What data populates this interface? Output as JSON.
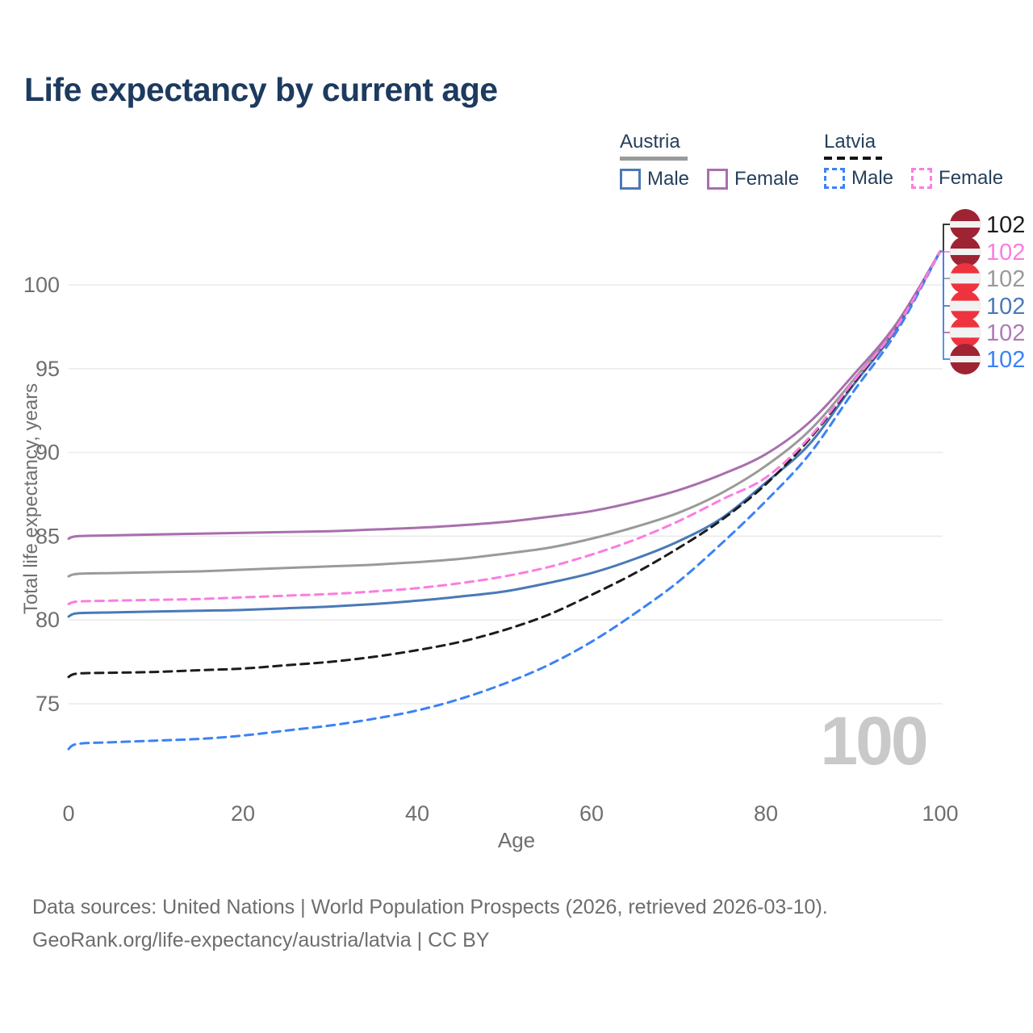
{
  "title": "Life expectancy by current age",
  "legend": {
    "austria": {
      "label": "Austria",
      "male": "Male",
      "female": "Female"
    },
    "latvia": {
      "label": "Latvia",
      "male": "Male",
      "female": "Female"
    }
  },
  "footer": {
    "line1": "Data sources: United Nations | World Population Prospects (2026, retrieved 2026-03-10).",
    "line2": "GeoRank.org/life-expectancy/austria/latvia | CC BY"
  },
  "colors": {
    "title_text": "#1d3a5f",
    "legend_text": "#26405c",
    "axis_text": "#6f6f6f",
    "grid": "#eaeaea",
    "watermark": "#c9c9c9",
    "footer_text": "#6d6d6d",
    "austria_flag_red": "#ee333f",
    "latvia_flag_red": "#9e2433",
    "flag_white": "#f2f2f2"
  },
  "chart_data": {
    "type": "line",
    "title": "Life expectancy by current age",
    "xlabel": "Age",
    "ylabel": "Total life expectancy, years",
    "xlim": [
      0,
      100
    ],
    "ylim": [
      71,
      103
    ],
    "xticks": [
      0,
      20,
      40,
      60,
      80,
      100
    ],
    "yticks": [
      75,
      80,
      85,
      90,
      95,
      100
    ],
    "grid": "horizontal",
    "legend_position": "top-right",
    "watermark": "100",
    "x": [
      0,
      1,
      5,
      10,
      15,
      20,
      25,
      30,
      35,
      40,
      45,
      50,
      55,
      60,
      65,
      70,
      75,
      80,
      85,
      90,
      95,
      100
    ],
    "series": [
      {
        "name": "Austria All",
        "country": "Austria",
        "sex": "All",
        "color": "#9a9a9a",
        "dashed": false,
        "flag": "austria",
        "row": 3,
        "end_label": "102",
        "end_label_color": "#9a9a9a",
        "values": [
          82.6,
          82.75,
          82.8,
          82.85,
          82.9,
          83.0,
          83.1,
          83.2,
          83.3,
          83.45,
          83.65,
          83.95,
          84.3,
          84.85,
          85.55,
          86.4,
          87.6,
          89.2,
          91.3,
          94.3,
          97.6,
          102
        ]
      },
      {
        "name": "Austria Male",
        "country": "Austria",
        "sex": "Male",
        "color": "#4a79b7",
        "dashed": false,
        "flag": "austria",
        "row": 4,
        "end_label": "102",
        "end_label_color": "#4a79b7",
        "values": [
          80.2,
          80.4,
          80.45,
          80.5,
          80.55,
          80.6,
          80.7,
          80.8,
          80.95,
          81.15,
          81.4,
          81.7,
          82.2,
          82.8,
          83.65,
          84.7,
          86.1,
          88.2,
          90.5,
          94.0,
          97.4,
          102
        ]
      },
      {
        "name": "Austria Female",
        "country": "Austria",
        "sex": "Female",
        "color": "#a86fae",
        "dashed": false,
        "flag": "austria",
        "row": 5,
        "end_label": "102",
        "end_label_color": "#b07ab5",
        "values": [
          84.85,
          85.0,
          85.05,
          85.1,
          85.15,
          85.2,
          85.25,
          85.3,
          85.4,
          85.5,
          85.65,
          85.85,
          86.15,
          86.5,
          87.05,
          87.75,
          88.7,
          89.9,
          91.8,
          94.6,
          97.7,
          102
        ]
      },
      {
        "name": "Latvia All",
        "country": "Latvia",
        "sex": "All",
        "color": "#1c1c1c",
        "dashed": true,
        "flag": "latvia",
        "row": 1,
        "end_label": "102",
        "end_label_color": "#1c1c1c",
        "values": [
          76.6,
          76.8,
          76.85,
          76.9,
          77.0,
          77.1,
          77.3,
          77.5,
          77.8,
          78.2,
          78.7,
          79.4,
          80.3,
          81.5,
          82.8,
          84.3,
          86.0,
          88.1,
          90.8,
          94.1,
          97.5,
          102
        ]
      },
      {
        "name": "Latvia Male",
        "country": "Latvia",
        "sex": "Male",
        "color": "#3b82f6",
        "dashed": true,
        "flag": "latvia",
        "row": 6,
        "end_label": "102",
        "end_label_color": "#3b82f6",
        "values": [
          72.3,
          72.6,
          72.7,
          72.8,
          72.9,
          73.1,
          73.4,
          73.7,
          74.1,
          74.6,
          75.3,
          76.2,
          77.3,
          78.7,
          80.4,
          82.3,
          84.6,
          87.1,
          89.9,
          93.6,
          97.2,
          102
        ]
      },
      {
        "name": "Latvia Female",
        "country": "Latvia",
        "sex": "Female",
        "color": "#fb7ddf",
        "dashed": true,
        "flag": "latvia",
        "row": 2,
        "end_label": "102",
        "end_label_color": "#fb7ddf",
        "values": [
          80.95,
          81.1,
          81.15,
          81.2,
          81.25,
          81.35,
          81.45,
          81.55,
          81.7,
          81.9,
          82.2,
          82.6,
          83.15,
          83.9,
          84.8,
          85.9,
          87.2,
          88.5,
          90.9,
          94.2,
          97.5,
          102
        ]
      }
    ]
  }
}
